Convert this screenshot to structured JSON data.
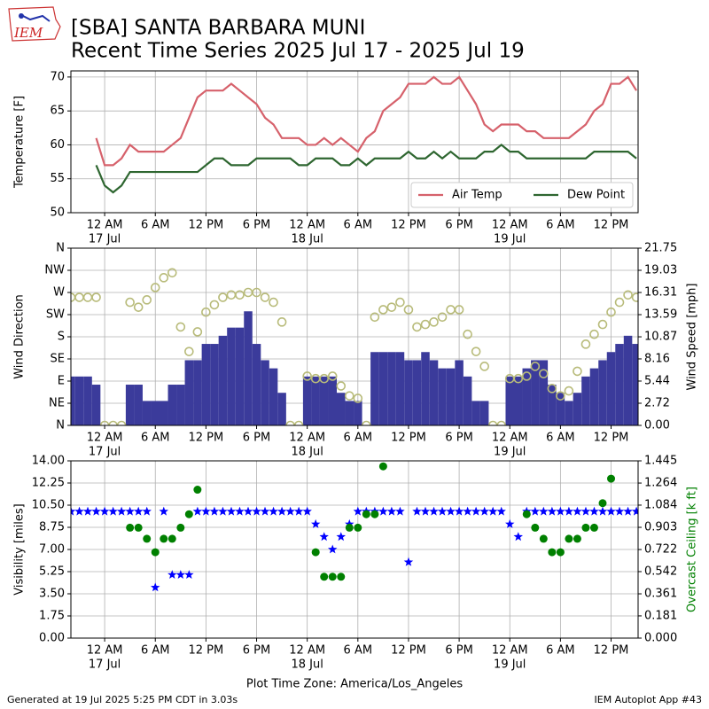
{
  "header": {
    "title": "[SBA] SANTA BARBARA MUNI",
    "subtitle": "Recent Time Series 2025 Jul 17 - 2025 Jul 19",
    "logo": "IEM"
  },
  "chart_data": [
    {
      "type": "line",
      "ylabel": "Temperature [F]",
      "xlim": [
        -4,
        63.2
      ],
      "ylim": [
        50,
        70.9
      ],
      "yticks": [
        50,
        55,
        60,
        65,
        70
      ],
      "xticks": [
        {
          "value": 0,
          "label": "12 AM"
        },
        {
          "value": 6,
          "label": "6 AM"
        },
        {
          "value": 12,
          "label": "12 PM"
        },
        {
          "value": 18,
          "label": "6 PM"
        },
        {
          "value": 24,
          "label": "12 AM"
        },
        {
          "value": 30,
          "label": "6 AM"
        },
        {
          "value": 36,
          "label": "12 PM"
        },
        {
          "value": 42,
          "label": "6 PM"
        },
        {
          "value": 48,
          "label": "12 AM"
        },
        {
          "value": 54,
          "label": "6 AM"
        },
        {
          "value": 60,
          "label": "12 PM"
        }
      ],
      "xdate_labels": [
        {
          "value": 0,
          "label": "17 Jul"
        },
        {
          "value": 24,
          "label": "18 Jul"
        },
        {
          "value": 48,
          "label": "19 Jul"
        }
      ],
      "grid": true,
      "legend": "lower right",
      "x": [
        -1,
        0,
        1,
        2,
        3,
        4,
        5,
        6,
        7,
        8,
        9,
        10,
        11,
        12,
        13,
        14,
        15,
        16,
        17,
        18,
        19,
        20,
        21,
        22,
        23,
        24,
        25,
        26,
        27,
        28,
        29,
        30,
        31,
        32,
        33,
        34,
        35,
        36,
        37,
        38,
        39,
        40,
        41,
        42,
        43,
        44,
        45,
        46,
        47,
        48,
        49,
        50,
        51,
        52,
        53,
        54,
        55,
        56,
        57,
        58,
        59,
        60,
        61,
        62,
        63
      ],
      "series": [
        {
          "name": "Air Temp",
          "color": "#d6616b",
          "values": [
            61,
            57,
            57,
            58,
            60,
            59,
            59,
            59,
            59,
            60,
            61,
            64,
            67,
            68,
            68,
            68,
            69,
            68,
            67,
            66,
            64,
            63,
            61,
            61,
            61,
            60,
            60,
            61,
            60,
            61,
            60,
            59,
            61,
            62,
            65,
            66,
            67,
            69,
            69,
            69,
            70,
            69,
            69,
            70,
            68,
            66,
            63,
            62,
            63,
            63,
            63,
            62,
            62,
            61,
            61,
            61,
            61,
            62,
            63,
            65,
            66,
            69,
            69,
            70,
            68
          ]
        },
        {
          "name": "Dew Point",
          "color": "#2e6630",
          "values": [
            57,
            54,
            53,
            54,
            56,
            56,
            56,
            56,
            56,
            56,
            56,
            56,
            56,
            57,
            58,
            58,
            57,
            57,
            57,
            58,
            58,
            58,
            58,
            58,
            57,
            57,
            58,
            58,
            58,
            57,
            57,
            58,
            57,
            58,
            58,
            58,
            58,
            59,
            58,
            58,
            59,
            58,
            59,
            58,
            58,
            58,
            59,
            59,
            60,
            59,
            59,
            58,
            58,
            58,
            58,
            58,
            58,
            58,
            58,
            59,
            59,
            59,
            59,
            59,
            58
          ]
        }
      ]
    },
    {
      "type": "combo",
      "ylabel": "Wind Direction",
      "y2label": "Wind Speed [mph]",
      "xlim": [
        -4,
        63.2
      ],
      "ylim": [
        0,
        360
      ],
      "yticks": [
        {
          "value": 0,
          "label": "N"
        },
        {
          "value": 45,
          "label": "NE"
        },
        {
          "value": 90,
          "label": "E"
        },
        {
          "value": 135,
          "label": "SE"
        },
        {
          "value": 180,
          "label": "S"
        },
        {
          "value": 225,
          "label": "SW"
        },
        {
          "value": 270,
          "label": "W"
        },
        {
          "value": 315,
          "label": "NW"
        },
        {
          "value": 360,
          "label": "N"
        }
      ],
      "y2lim": [
        0,
        21.75
      ],
      "y2ticks": [
        {
          "value": 0,
          "label": "0.00"
        },
        2.72,
        5.44,
        8.16,
        10.87,
        13.59,
        16.31,
        19.03,
        21.75
      ],
      "xticks": [
        {
          "value": 0,
          "label": "12 AM"
        },
        {
          "value": 6,
          "label": "6 AM"
        },
        {
          "value": 12,
          "label": "12 PM"
        },
        {
          "value": 18,
          "label": "6 PM"
        },
        {
          "value": 24,
          "label": "12 AM"
        },
        {
          "value": 30,
          "label": "6 AM"
        },
        {
          "value": 36,
          "label": "12 PM"
        },
        {
          "value": 42,
          "label": "6 PM"
        },
        {
          "value": 48,
          "label": "12 AM"
        },
        {
          "value": 54,
          "label": "6 AM"
        },
        {
          "value": 60,
          "label": "12 PM"
        }
      ],
      "xdate_labels": [
        {
          "value": 0,
          "label": "17 Jul"
        },
        {
          "value": 24,
          "label": "18 Jul"
        },
        {
          "value": 48,
          "label": "19 Jul"
        }
      ],
      "grid": true,
      "x": [
        -4,
        -3,
        -2,
        -1,
        0,
        1,
        2,
        3,
        4,
        5,
        6,
        7,
        8,
        9,
        10,
        11,
        12,
        13,
        14,
        15,
        16,
        17,
        18,
        19,
        20,
        21,
        22,
        23,
        24,
        25,
        26,
        27,
        28,
        29,
        30,
        31,
        32,
        33,
        34,
        35,
        36,
        37,
        38,
        39,
        40,
        41,
        42,
        43,
        44,
        45,
        46,
        47,
        48,
        49,
        50,
        51,
        52,
        53,
        54,
        55,
        56,
        57,
        58,
        59,
        60,
        61,
        62,
        63
      ],
      "series": [
        {
          "type": "bar",
          "axis": "y2",
          "color": "#3b3b9b",
          "values": [
            6,
            6,
            6,
            5,
            0,
            0,
            0,
            5,
            5,
            3,
            3,
            3,
            5,
            5,
            8,
            8,
            10,
            10,
            11,
            12,
            12,
            14,
            10,
            8,
            7,
            4,
            0,
            0,
            6,
            6,
            6,
            6,
            4,
            3,
            3,
            0,
            9,
            9,
            9,
            9,
            8,
            8,
            9,
            8,
            7,
            7,
            8,
            6,
            3,
            3,
            0,
            0,
            6,
            6,
            7,
            8,
            8,
            5,
            4,
            3,
            4,
            6,
            7,
            8,
            9,
            10,
            11,
            10
          ]
        },
        {
          "type": "scatter",
          "marker": "open-circle",
          "color": "#b8bb7a",
          "values": [
            260,
            260,
            260,
            260,
            0,
            0,
            0,
            250,
            240,
            255,
            280,
            300,
            310,
            200,
            150,
            190,
            230,
            245,
            260,
            265,
            265,
            270,
            270,
            260,
            250,
            210,
            0,
            0,
            100,
            95,
            95,
            100,
            80,
            60,
            55,
            0,
            220,
            235,
            240,
            250,
            235,
            200,
            205,
            210,
            220,
            235,
            235,
            185,
            150,
            120,
            0,
            0,
            95,
            95,
            100,
            120,
            105,
            75,
            60,
            70,
            110,
            165,
            185,
            205,
            230,
            250,
            265,
            260
          ]
        }
      ]
    },
    {
      "type": "scatter",
      "ylabel": "Visibility [miles]",
      "y2label": "Overcast Ceiling [k ft]",
      "y2label_color": "#008000",
      "xlabel": "Plot Time Zone: America/Los_Angeles",
      "xlim": [
        -4,
        63.2
      ],
      "ylim": [
        0,
        14
      ],
      "yticks": [
        {
          "value": 0,
          "label": "0.00"
        },
        1.75,
        {
          "value": 3.5,
          "label": "3.50"
        },
        5.25,
        {
          "value": 7,
          "label": "7.00"
        },
        8.75,
        {
          "value": 10.5,
          "label": "10.50"
        },
        12.25,
        {
          "value": 14,
          "label": "14.00"
        }
      ],
      "y2lim": [
        0,
        1.445
      ],
      "y2ticks": [
        {
          "value": 0,
          "label": "0.000"
        },
        0.181,
        0.361,
        0.542,
        0.722,
        0.903,
        1.084,
        1.264,
        1.445
      ],
      "xticks": [
        {
          "value": 0,
          "label": "12 AM"
        },
        {
          "value": 6,
          "label": "6 AM"
        },
        {
          "value": 12,
          "label": "12 PM"
        },
        {
          "value": 18,
          "label": "6 PM"
        },
        {
          "value": 24,
          "label": "12 AM"
        },
        {
          "value": 30,
          "label": "6 AM"
        },
        {
          "value": 36,
          "label": "12 PM"
        },
        {
          "value": 42,
          "label": "6 PM"
        },
        {
          "value": 48,
          "label": "12 AM"
        },
        {
          "value": 54,
          "label": "6 AM"
        },
        {
          "value": 60,
          "label": "12 PM"
        }
      ],
      "xdate_labels": [
        {
          "value": 0,
          "label": "17 Jul"
        },
        {
          "value": 24,
          "label": "18 Jul"
        },
        {
          "value": 48,
          "label": "19 Jul"
        }
      ],
      "grid": true,
      "x": [
        -4,
        -3,
        -2,
        -1,
        0,
        1,
        2,
        3,
        4,
        5,
        6,
        7,
        8,
        9,
        10,
        11,
        12,
        13,
        14,
        15,
        16,
        17,
        18,
        19,
        20,
        21,
        22,
        23,
        24,
        25,
        26,
        27,
        28,
        29,
        30,
        31,
        32,
        33,
        34,
        35,
        36,
        37,
        38,
        39,
        40,
        41,
        42,
        43,
        44,
        45,
        46,
        47,
        48,
        49,
        50,
        51,
        52,
        53,
        54,
        55,
        56,
        57,
        58,
        59,
        60,
        61,
        62,
        63
      ],
      "series": [
        {
          "type": "scatter",
          "marker": "star",
          "color": "#0000ff",
          "values": [
            10,
            10,
            10,
            10,
            10,
            10,
            10,
            10,
            10,
            10,
            4,
            10,
            5,
            5,
            5,
            10,
            10,
            10,
            10,
            10,
            10,
            10,
            10,
            10,
            10,
            10,
            10,
            10,
            10,
            9,
            8,
            7,
            8,
            9,
            10,
            10,
            10,
            10,
            10,
            10,
            6,
            10,
            10,
            10,
            10,
            10,
            10,
            10,
            10,
            10,
            10,
            10,
            9,
            8,
            10,
            10,
            10,
            10,
            10,
            10,
            10,
            10,
            10,
            10,
            10,
            10,
            10,
            10
          ]
        },
        {
          "type": "scatter",
          "marker": "circle",
          "axis": "y2",
          "color": "#008000",
          "values": [
            null,
            null,
            null,
            null,
            null,
            null,
            null,
            0.9,
            0.9,
            0.81,
            0.7,
            0.81,
            0.81,
            0.9,
            1.01,
            1.21,
            null,
            null,
            null,
            null,
            null,
            null,
            null,
            null,
            null,
            null,
            null,
            null,
            null,
            0.7,
            0.5,
            0.5,
            0.5,
            0.9,
            0.9,
            1.01,
            1.01,
            1.4,
            null,
            null,
            null,
            null,
            null,
            null,
            null,
            null,
            null,
            null,
            null,
            null,
            null,
            null,
            null,
            null,
            1.01,
            0.9,
            0.81,
            0.7,
            0.7,
            0.81,
            0.81,
            0.9,
            0.9,
            1.1,
            1.3,
            null,
            null,
            null
          ]
        }
      ]
    }
  ],
  "footer": {
    "left": "Generated at 19 Jul 2025 5:25 PM CDT in 3.03s",
    "right": "IEM Autoplot App #43"
  }
}
